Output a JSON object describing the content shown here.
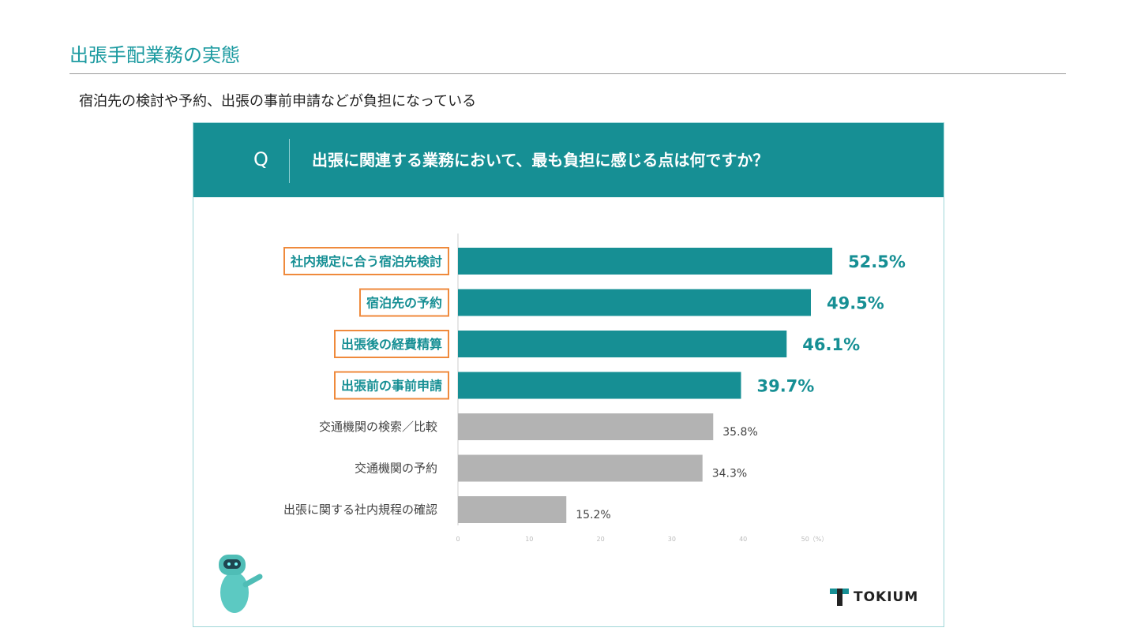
{
  "page": {
    "title": "出張手配業務の実態",
    "subtitle": "宿泊先の検討や予約、出張の事前申請などが負担になっている"
  },
  "question": {
    "mark": "Q",
    "text": "出張に関連する業務において、最も負担に感じる点は何ですか？"
  },
  "brand": "TOKIUM",
  "chart_data": {
    "type": "bar",
    "orientation": "horizontal",
    "title": "出張に関連する業務において、最も負担に感じる点は何ですか？",
    "categories": [
      "社内規定に合う宿泊先検討",
      "宿泊先の予約",
      "出張後の経費精算",
      "出張前の事前申請",
      "交通機関の検索／比較",
      "交通機関の予約",
      "出張に関する社内規程の確認"
    ],
    "values": [
      52.5,
      49.5,
      46.1,
      39.7,
      35.8,
      34.3,
      15.2
    ],
    "value_labels": [
      "52.5%",
      "49.5%",
      "46.1%",
      "39.7%",
      "35.8%",
      "34.3%",
      "15.2%"
    ],
    "highlighted": [
      true,
      true,
      true,
      true,
      false,
      false,
      false
    ],
    "xlim": [
      0,
      50
    ],
    "x_ticks": [
      "0",
      "10",
      "20",
      "30",
      "40",
      "50（%）"
    ],
    "colors": {
      "highlight": "#168f94",
      "normal": "#b3b3b3",
      "label_box": "#ef8a3c"
    }
  }
}
